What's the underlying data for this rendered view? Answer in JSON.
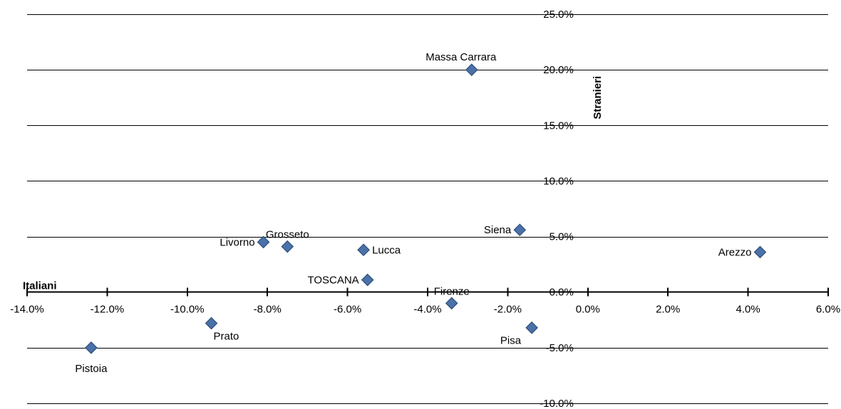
{
  "chart_data": {
    "type": "scatter",
    "xlabel": "Italiani",
    "ylabel": "Stranieri",
    "xlim": [
      -14.0,
      6.0
    ],
    "ylim": [
      -10.0,
      25.0
    ],
    "x_ticks": [
      -14,
      -12,
      -10,
      -8,
      -6,
      -4,
      -2,
      0,
      2,
      4,
      6
    ],
    "y_ticks": [
      -10,
      -5,
      0,
      5,
      10,
      15,
      20,
      25
    ],
    "x_tick_labels": [
      "-14.0%",
      "-12.0%",
      "-10.0%",
      "-8.0%",
      "-6.0%",
      "-4.0%",
      "-2.0%",
      "0.0%",
      "2.0%",
      "4.0%",
      "6.0%"
    ],
    "y_tick_labels": [
      "-10.0%",
      "-5.0%",
      "0.0%",
      "5.0%",
      "10.0%",
      "15.0%",
      "20.0%",
      "25.0%"
    ],
    "horizontal_grid": true,
    "vertical_grid": false,
    "legend": "none",
    "marker": "diamond",
    "marker_color": "#4a72a8",
    "marker_edge_color": "#2e4f7c",
    "points": [
      {
        "label": "Massa Carrara",
        "x": -2.9,
        "y": 20.0,
        "label_pos": "above-left"
      },
      {
        "label": "Siena",
        "x": -1.7,
        "y": 5.6,
        "label_pos": "left"
      },
      {
        "label": "Arezzo",
        "x": 4.3,
        "y": 3.6,
        "label_pos": "left"
      },
      {
        "label": "Grosseto",
        "x": -7.5,
        "y": 4.1,
        "label_pos": "above"
      },
      {
        "label": "Livorno",
        "x": -8.1,
        "y": 4.5,
        "label_pos": "left"
      },
      {
        "label": "Lucca",
        "x": -5.6,
        "y": 3.8,
        "label_pos": "right"
      },
      {
        "label": "TOSCANA",
        "x": -5.5,
        "y": 1.1,
        "label_pos": "left"
      },
      {
        "label": "Firenze",
        "x": -3.4,
        "y": -1.0,
        "label_pos": "above"
      },
      {
        "label": "Pisa",
        "x": -1.4,
        "y": -3.2,
        "label_pos": "below-left"
      },
      {
        "label": "Prato",
        "x": -9.4,
        "y": -2.8,
        "label_pos": "below-right"
      },
      {
        "label": "Pistoia",
        "x": -12.4,
        "y": -5.0,
        "label_pos": "below"
      }
    ]
  }
}
